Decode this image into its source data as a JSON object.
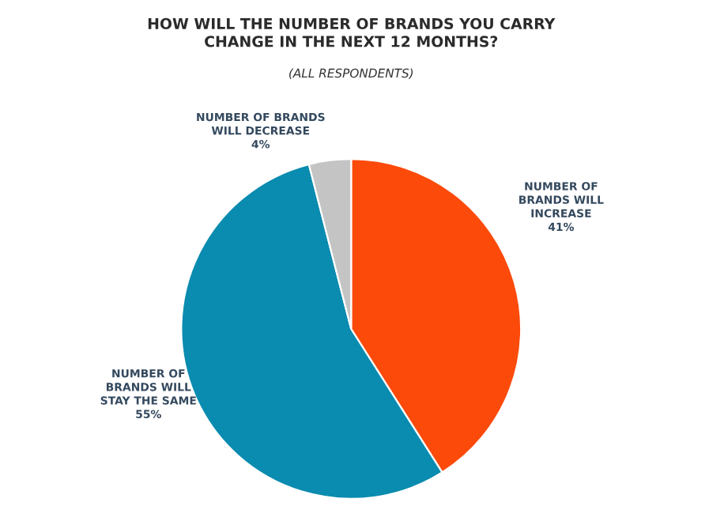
{
  "chart_data": {
    "type": "pie",
    "title": "HOW WILL THE NUMBER OF BRANDS YOU CARRY\nCHANGE IN THE NEXT 12 MONTHS?",
    "subtitle": "(ALL RESPONDENTS)",
    "categories": [
      "NUMBER OF\nBRANDS WILL\nINCREASE",
      "NUMBER OF\nBRANDS WILL\nSTAY THE SAME",
      "NUMBER OF BRANDS\nWILL DECREASE"
    ],
    "values": [
      41,
      55,
      4
    ],
    "value_labels": [
      "41%",
      "55%",
      "4%"
    ],
    "colors": [
      "#fc4a0a",
      "#0a8bb0",
      "#c4c4c4"
    ]
  }
}
